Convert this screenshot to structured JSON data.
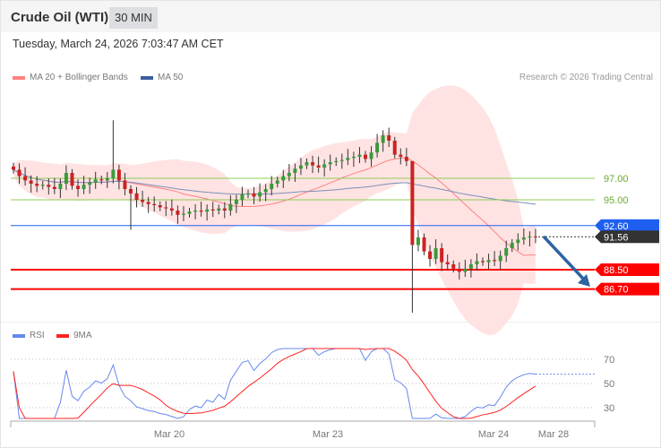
{
  "header": {
    "title": "Crude Oil (WTI)",
    "timeframe": "30 MIN"
  },
  "timestamp": "Tuesday, March 24, 2026 7:03:47 AM CET",
  "legend": {
    "ma20": "MA 20 + Bollinger Bands",
    "ma50": "MA 50",
    "rsi": "RSI",
    "rsi_ma": "9MA"
  },
  "copyright": "Research © 2026 Trading Central",
  "colors": {
    "ma20": "#ff8080",
    "band": "#ffe3e3",
    "ma50": "#3b5fa0",
    "up": "#3a9a3a",
    "down": "#cc2222",
    "resistance": "#8ccc55",
    "pivot": "#1e5ff0",
    "support": "#ff0000",
    "last": "#333333",
    "arrow": "#2f63a3",
    "rsi": "#6688ee",
    "rsi_ma": "#ff2222"
  },
  "levels": [
    {
      "label": "97.00",
      "value": 97.0,
      "kind": "resistance"
    },
    {
      "label": "95.00",
      "value": 95.0,
      "kind": "resistance"
    },
    {
      "label": "92.60",
      "value": 92.6,
      "kind": "pivot"
    },
    {
      "label": "88.50",
      "value": 88.5,
      "kind": "support"
    },
    {
      "label": "86.70",
      "value": 86.7,
      "kind": "support"
    }
  ],
  "last_price": {
    "label": "91.56",
    "value": 91.56
  },
  "chart_data": {
    "type": "candlestick",
    "closes": [
      97.8,
      97.2,
      96.8,
      96.5,
      96.3,
      96.4,
      96.2,
      96.0,
      96.5,
      97.5,
      96.3,
      96.0,
      96.4,
      96.6,
      96.9,
      96.8,
      97.0,
      97.8,
      96.8,
      96.0,
      95.6,
      95.0,
      94.8,
      94.6,
      94.5,
      94.3,
      94.2,
      94.0,
      93.6,
      93.7,
      93.9,
      94.0,
      93.9,
      94.1,
      94.0,
      94.2,
      94.0,
      94.6,
      95.0,
      95.5,
      95.6,
      95.3,
      95.7,
      96.0,
      96.5,
      96.8,
      97.2,
      97.5,
      97.9,
      98.2,
      98.5,
      98.2,
      98.0,
      98.3,
      98.5,
      98.6,
      98.7,
      98.9,
      99.0,
      99.2,
      98.8,
      99.4,
      100.3,
      101.0,
      100.5,
      99.2,
      99.0,
      98.6,
      90.8,
      91.5,
      90.2,
      89.5,
      90.5,
      89.2,
      89.0,
      88.6,
      88.3,
      88.6,
      89.0,
      89.3,
      89.2,
      89.4,
      89.3,
      89.8,
      90.5,
      91.0,
      91.3,
      91.5,
      91.6,
      91.56
    ],
    "x_tick_labels": [
      "Mar 20",
      "Mar 23",
      "Mar 24",
      "Mar 28"
    ],
    "rsi_ticks": [
      "70",
      "50",
      "30"
    ],
    "forecast": {
      "from": 91.56,
      "to": 86.7,
      "direction": "down"
    }
  }
}
